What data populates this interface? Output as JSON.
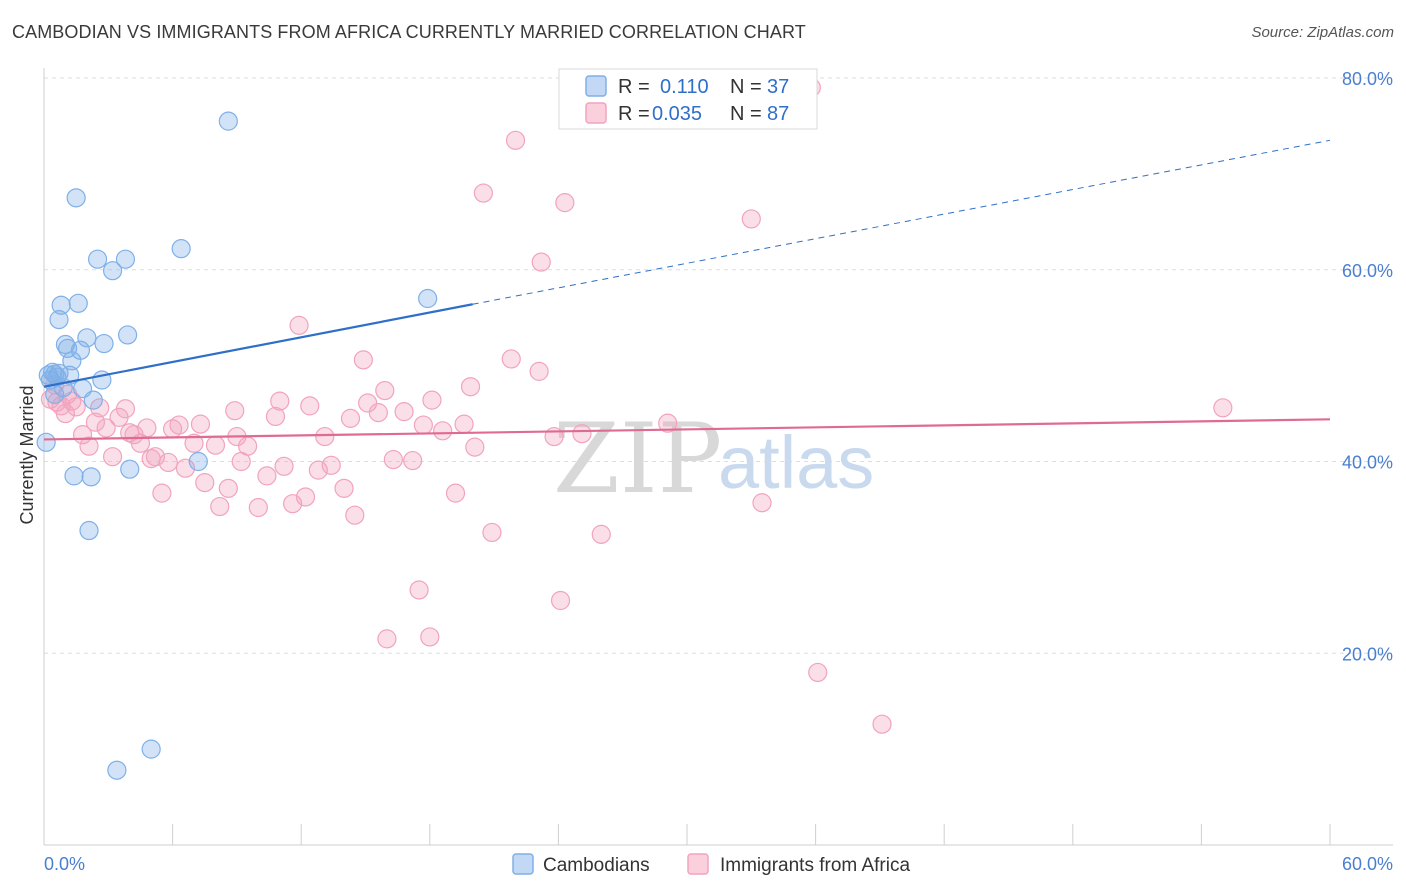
{
  "title": "CAMBODIAN VS IMMIGRANTS FROM AFRICA CURRENTLY MARRIED CORRELATION CHART",
  "source": "Source: ZipAtlas.com",
  "watermark": {
    "part1": "ZIP",
    "part2": "atlas"
  },
  "colors": {
    "series1": "#7fb0e8",
    "series1_line": "#2f6fc9",
    "series2": "#f2a3bd",
    "series2_line": "#e06b92",
    "tick_text": "#4a7fcf"
  },
  "legend_top": {
    "s1": {
      "r_label": "R =",
      "r_value": "0.110",
      "n_label": "N =",
      "n_value": "37"
    },
    "s2": {
      "r_label": "R =",
      "r_value": "0.035",
      "n_label": "N =",
      "n_value": "87"
    }
  },
  "chart_data": {
    "type": "scatter",
    "title": "CAMBODIAN VS IMMIGRANTS FROM AFRICA CURRENTLY MARRIED CORRELATION CHART",
    "xlabel": "",
    "ylabel": "Currently Married",
    "xlim": [
      0,
      60
    ],
    "ylim": [
      0,
      80
    ],
    "x_tick_labels": [
      "0.0%",
      "60.0%"
    ],
    "y_ticks": [
      20,
      40,
      60,
      80
    ],
    "y_tick_labels": [
      "20.0%",
      "40.0%",
      "60.0%",
      "80.0%"
    ],
    "legend": [
      "Cambodians",
      "Immigrants from Africa"
    ],
    "series": [
      {
        "name": "Cambodians",
        "r": 0.11,
        "n": 37,
        "trend": {
          "x0": 0,
          "y0": 47.8,
          "x1": 20,
          "y1": 56.4,
          "dashed_to_x": 60,
          "dashed_to_y": 73.5
        },
        "points": [
          [
            0.1,
            42.0
          ],
          [
            0.2,
            49.0
          ],
          [
            0.3,
            48.5
          ],
          [
            0.4,
            49.3
          ],
          [
            0.5,
            47.0
          ],
          [
            0.6,
            48.8
          ],
          [
            0.7,
            49.2
          ],
          [
            0.7,
            54.8
          ],
          [
            0.8,
            56.3
          ],
          [
            0.9,
            47.7
          ],
          [
            1.0,
            52.2
          ],
          [
            1.1,
            51.8
          ],
          [
            1.2,
            49.0
          ],
          [
            1.3,
            50.5
          ],
          [
            1.4,
            38.5
          ],
          [
            1.5,
            67.5
          ],
          [
            1.6,
            56.5
          ],
          [
            1.7,
            51.6
          ],
          [
            1.8,
            47.6
          ],
          [
            2.0,
            52.9
          ],
          [
            2.1,
            32.8
          ],
          [
            2.2,
            38.4
          ],
          [
            2.3,
            46.4
          ],
          [
            2.5,
            61.1
          ],
          [
            2.7,
            48.5
          ],
          [
            2.8,
            52.3
          ],
          [
            3.2,
            59.9
          ],
          [
            3.4,
            7.8
          ],
          [
            3.8,
            61.1
          ],
          [
            3.9,
            53.2
          ],
          [
            4.0,
            39.2
          ],
          [
            5.0,
            10.0
          ],
          [
            6.4,
            62.2
          ],
          [
            7.2,
            40.0
          ],
          [
            8.6,
            75.5
          ],
          [
            17.9,
            57.0
          ],
          [
            0.5,
            49.1
          ]
        ]
      },
      {
        "name": "Immigrants from Africa",
        "r": 0.035,
        "n": 87,
        "trend": {
          "x0": 0,
          "y0": 42.3,
          "x1": 60,
          "y1": 44.4
        },
        "points": [
          [
            0.3,
            46.5
          ],
          [
            0.5,
            48.0
          ],
          [
            0.6,
            46.2
          ],
          [
            0.8,
            45.8
          ],
          [
            1.0,
            45.0
          ],
          [
            1.1,
            47.0
          ],
          [
            1.3,
            46.3
          ],
          [
            1.5,
            45.7
          ],
          [
            1.8,
            42.8
          ],
          [
            2.1,
            41.6
          ],
          [
            2.4,
            44.1
          ],
          [
            2.6,
            45.6
          ],
          [
            2.9,
            43.5
          ],
          [
            3.2,
            40.5
          ],
          [
            3.5,
            44.6
          ],
          [
            3.8,
            45.5
          ],
          [
            4.0,
            43.0
          ],
          [
            4.2,
            42.8
          ],
          [
            4.5,
            41.9
          ],
          [
            4.8,
            43.5
          ],
          [
            5.0,
            40.3
          ],
          [
            5.2,
            40.5
          ],
          [
            5.5,
            36.7
          ],
          [
            5.8,
            39.9
          ],
          [
            6.0,
            43.4
          ],
          [
            6.3,
            43.8
          ],
          [
            6.6,
            39.3
          ],
          [
            7.0,
            41.9
          ],
          [
            7.3,
            43.9
          ],
          [
            7.5,
            37.8
          ],
          [
            8.0,
            41.7
          ],
          [
            8.2,
            35.3
          ],
          [
            8.6,
            37.2
          ],
          [
            8.9,
            45.3
          ],
          [
            9.0,
            42.6
          ],
          [
            9.2,
            40.0
          ],
          [
            9.5,
            41.6
          ],
          [
            10.0,
            35.2
          ],
          [
            10.4,
            38.5
          ],
          [
            10.8,
            44.7
          ],
          [
            11.0,
            46.3
          ],
          [
            11.2,
            39.5
          ],
          [
            11.6,
            35.6
          ],
          [
            11.9,
            54.2
          ],
          [
            12.2,
            36.3
          ],
          [
            12.4,
            45.8
          ],
          [
            12.8,
            39.1
          ],
          [
            13.1,
            42.6
          ],
          [
            13.4,
            39.6
          ],
          [
            14.0,
            37.2
          ],
          [
            14.3,
            44.5
          ],
          [
            14.5,
            34.4
          ],
          [
            14.9,
            50.6
          ],
          [
            15.1,
            46.1
          ],
          [
            15.6,
            45.1
          ],
          [
            15.9,
            47.4
          ],
          [
            16.0,
            21.5
          ],
          [
            16.3,
            40.2
          ],
          [
            16.8,
            45.2
          ],
          [
            17.2,
            40.1
          ],
          [
            17.5,
            26.6
          ],
          [
            17.7,
            43.8
          ],
          [
            18.0,
            21.7
          ],
          [
            18.1,
            46.4
          ],
          [
            18.6,
            43.2
          ],
          [
            19.2,
            36.7
          ],
          [
            19.6,
            43.9
          ],
          [
            19.9,
            47.8
          ],
          [
            20.1,
            41.5
          ],
          [
            20.5,
            68.0
          ],
          [
            20.9,
            32.6
          ],
          [
            21.8,
            50.7
          ],
          [
            22.0,
            73.5
          ],
          [
            23.1,
            49.4
          ],
          [
            23.2,
            60.8
          ],
          [
            23.8,
            42.6
          ],
          [
            24.1,
            25.5
          ],
          [
            24.3,
            67.0
          ],
          [
            25.1,
            42.9
          ],
          [
            26.0,
            32.4
          ],
          [
            29.1,
            44.0
          ],
          [
            33.0,
            65.3
          ],
          [
            33.5,
            35.7
          ],
          [
            35.8,
            79.0
          ],
          [
            36.1,
            18.0
          ],
          [
            39.1,
            12.6
          ],
          [
            55.0,
            45.6
          ]
        ]
      }
    ]
  }
}
